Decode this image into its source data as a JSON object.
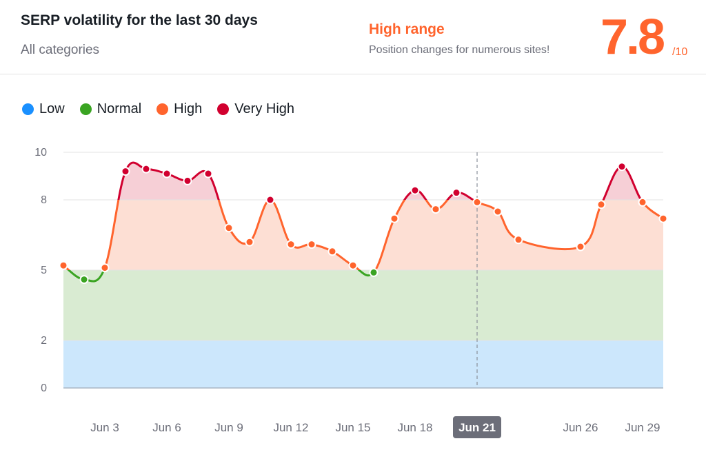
{
  "header": {
    "title": "SERP volatility for the last 30 days",
    "subtitle": "All categories",
    "range_title": "High range",
    "range_desc": "Position changes for numerous sites!",
    "score": "7.8",
    "score_max": "/10"
  },
  "legend": [
    {
      "label": "Low",
      "color": "#1a90ff"
    },
    {
      "label": "Normal",
      "color": "#3aa422"
    },
    {
      "label": "High",
      "color": "#ff642d"
    },
    {
      "label": "Very High",
      "color": "#d1002f"
    }
  ],
  "colors": {
    "low_band": "#cce7fc",
    "normal_band": "#d9ebd2",
    "high_band": "#fddfd4",
    "very_high_band": "#f6cfd6",
    "grid": "#e3e3e3"
  },
  "chart_data": {
    "type": "line",
    "ylim": [
      0,
      10
    ],
    "yticks": [
      0,
      2,
      5,
      8,
      10
    ],
    "ranges": [
      {
        "name": "Low",
        "from": 0,
        "to": 2
      },
      {
        "name": "Normal",
        "from": 2,
        "to": 5
      },
      {
        "name": "High",
        "from": 5,
        "to": 8
      },
      {
        "name": "Very High",
        "from": 8,
        "to": 10
      }
    ],
    "x": [
      1,
      2,
      3,
      4,
      5,
      6,
      7,
      8,
      9,
      10,
      11,
      12,
      13,
      14,
      15,
      16,
      17,
      18,
      19,
      20,
      21,
      22,
      23,
      24,
      25,
      26,
      27,
      28,
      29,
      30
    ],
    "values": [
      5.2,
      4.6,
      5.1,
      9.2,
      9.3,
      9.1,
      8.8,
      9.1,
      6.8,
      6.2,
      8.0,
      6.1,
      6.1,
      5.8,
      5.2,
      4.9,
      7.2,
      8.4,
      7.6,
      8.3,
      7.9,
      7.5,
      6.3,
      null,
      null,
      6.0,
      7.8,
      9.4,
      7.9,
      7.2
    ],
    "xtick_days": [
      3,
      6,
      9,
      12,
      15,
      18,
      21,
      26,
      29
    ],
    "xtick_labels": [
      "Jun 3",
      "Jun 6",
      "Jun 9",
      "Jun 12",
      "Jun 15",
      "Jun 18",
      "Jun 21",
      "Jun 26",
      "Jun 29"
    ],
    "highlight_day": 21,
    "highlight_label": "Jun 21"
  }
}
